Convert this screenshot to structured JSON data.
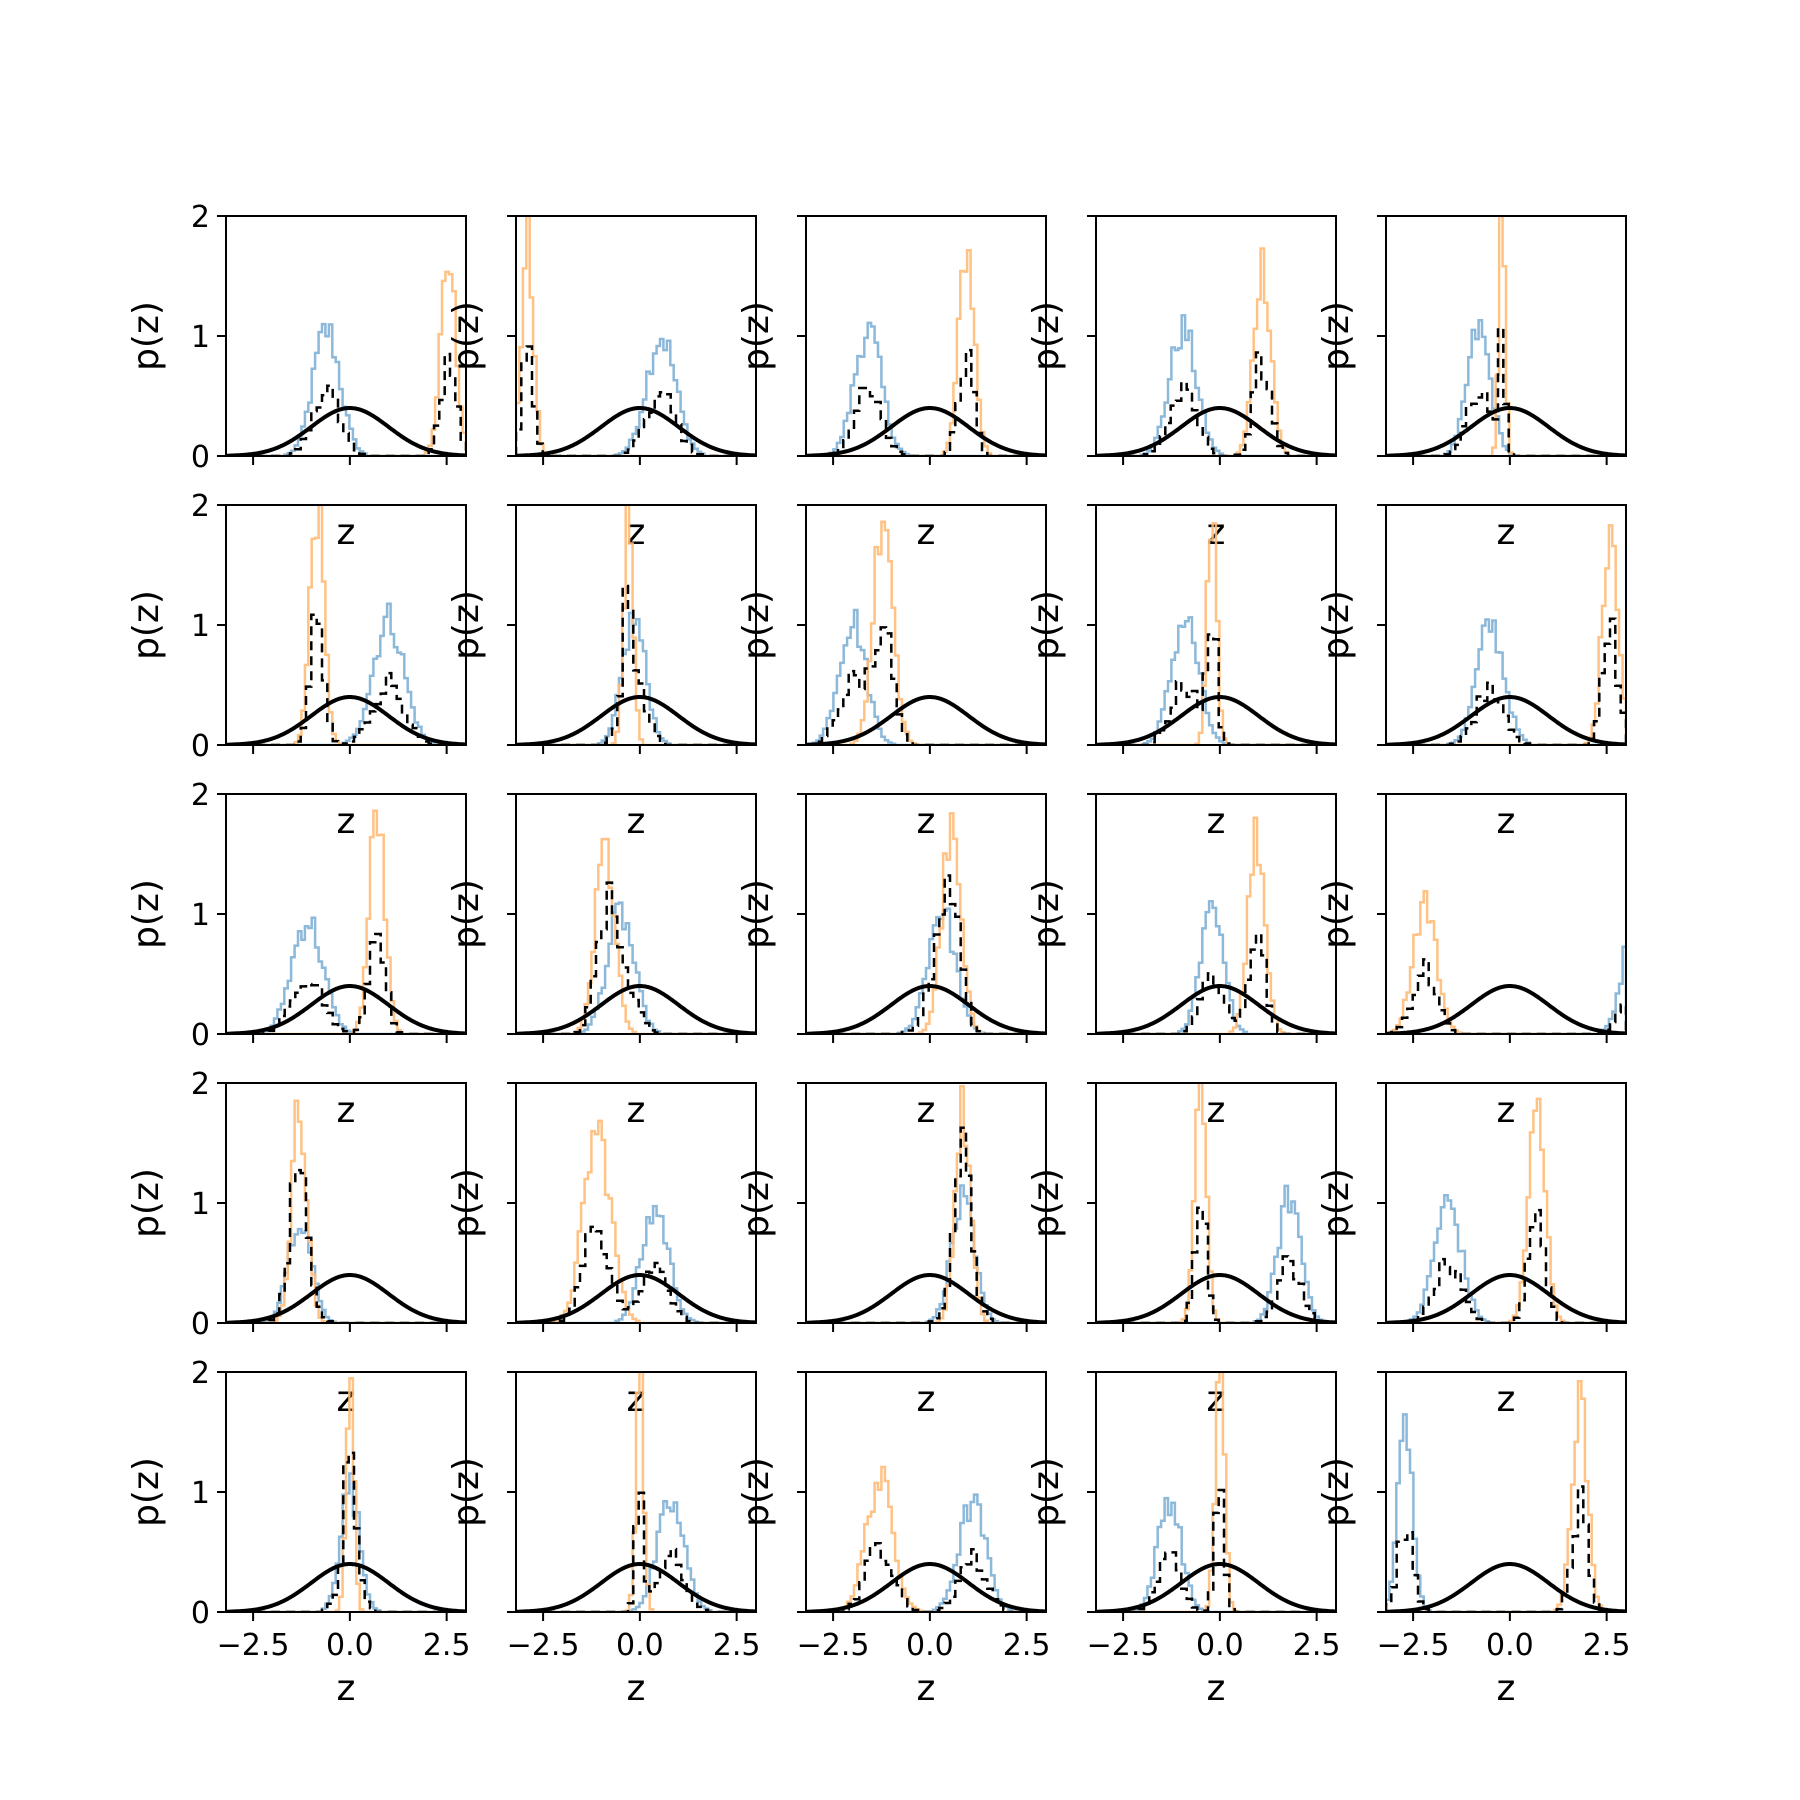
{
  "colors": {
    "group_a": "#7fb0d6",
    "group_b": "#ffbb78",
    "combined": "#000000",
    "prior": "#000000",
    "frame": "#000000"
  },
  "chart_data": {
    "type": "line",
    "layout": {
      "rows": 5,
      "cols": 5
    },
    "x_ticks": [
      -2.5,
      0.0,
      2.5
    ],
    "x_tick_labels": [
      "−2.5",
      "0.0",
      "2.5"
    ],
    "y_ticks": [
      0,
      1,
      2
    ],
    "y_tick_labels": [
      "0",
      "1",
      "2"
    ],
    "xlim": [
      -3.2,
      3.0
    ],
    "ylim": [
      0,
      2
    ],
    "xlabel": "z",
    "ylabel": "p(z)",
    "grid": false,
    "legend": "none",
    "prior": {
      "mean": 0,
      "std": 1,
      "peak": 0.4
    },
    "panels": [
      {
        "blue": [
          -0.6,
          0.35,
          1.05
        ],
        "orange": [
          2.55,
          0.2,
          1.6
        ]
      },
      {
        "blue": [
          0.55,
          0.38,
          1.0
        ],
        "orange": [
          -2.9,
          0.15,
          1.8
        ]
      },
      {
        "blue": [
          -1.6,
          0.35,
          1.05
        ],
        "orange": [
          0.95,
          0.2,
          1.75
        ]
      },
      {
        "blue": [
          -0.95,
          0.35,
          1.05
        ],
        "orange": [
          1.1,
          0.22,
          1.6
        ]
      },
      {
        "blue": [
          -0.8,
          0.3,
          1.05
        ],
        "orange": [
          -0.2,
          0.08,
          2.0
        ]
      },
      {
        "blue": [
          1.0,
          0.4,
          1.05
        ],
        "orange": [
          -0.85,
          0.18,
          2.0
        ]
      },
      {
        "blue": [
          -0.15,
          0.3,
          1.05
        ],
        "orange": [
          -0.3,
          0.12,
          2.0
        ]
      },
      {
        "blue": [
          -2.0,
          0.35,
          1.05
        ],
        "orange": [
          -1.2,
          0.25,
          2.0
        ]
      },
      {
        "blue": [
          -0.9,
          0.35,
          1.05
        ],
        "orange": [
          -0.2,
          0.12,
          2.0
        ]
      },
      {
        "blue": [
          -0.5,
          0.35,
          1.0
        ],
        "orange": [
          2.6,
          0.2,
          1.9
        ]
      },
      {
        "blue": [
          -1.1,
          0.4,
          0.95
        ],
        "orange": [
          0.7,
          0.2,
          1.85
        ]
      },
      {
        "blue": [
          -0.5,
          0.35,
          1.0
        ],
        "orange": [
          -0.9,
          0.25,
          1.55
        ]
      },
      {
        "blue": [
          0.3,
          0.35,
          1.05
        ],
        "orange": [
          0.55,
          0.25,
          1.65
        ]
      },
      {
        "blue": [
          -0.2,
          0.3,
          1.0
        ],
        "orange": [
          0.95,
          0.22,
          1.65
        ]
      },
      {
        "blue": [
          3.2,
          0.3,
          0.9
        ],
        "orange": [
          -2.2,
          0.3,
          1.1
        ]
      },
      {
        "blue": [
          -1.3,
          0.3,
          0.9
        ],
        "orange": [
          -1.3,
          0.2,
          1.8
        ]
      },
      {
        "blue": [
          0.4,
          0.35,
          0.95
        ],
        "orange": [
          -1.1,
          0.35,
          1.6
        ]
      },
      {
        "blue": [
          0.85,
          0.3,
          1.0
        ],
        "orange": [
          0.85,
          0.2,
          1.75
        ]
      },
      {
        "blue": [
          1.8,
          0.3,
          1.05
        ],
        "orange": [
          -0.5,
          0.15,
          2.0
        ]
      },
      {
        "blue": [
          -1.6,
          0.35,
          1.0
        ],
        "orange": [
          0.7,
          0.22,
          1.75
        ]
      },
      {
        "blue": [
          0.0,
          0.25,
          1.05
        ],
        "orange": [
          0.0,
          0.1,
          2.0
        ]
      },
      {
        "blue": [
          0.8,
          0.35,
          0.9
        ],
        "orange": [
          0.0,
          0.1,
          2.0
        ]
      },
      {
        "blue": [
          1.1,
          0.35,
          0.9
        ],
        "orange": [
          -1.3,
          0.35,
          1.1
        ]
      },
      {
        "blue": [
          -1.3,
          0.3,
          0.95
        ],
        "orange": [
          0.0,
          0.12,
          2.0
        ]
      },
      {
        "blue": [
          -2.7,
          0.2,
          1.5
        ],
        "orange": [
          1.8,
          0.2,
          1.8
        ]
      }
    ]
  }
}
